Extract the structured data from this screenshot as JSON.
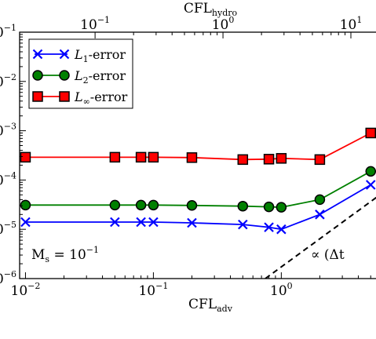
{
  "chart_data": {
    "type": "line",
    "xscale": "log",
    "yscale": "log",
    "xlim": [
      0.009,
      5.5
    ],
    "ylim": [
      1e-06,
      0.1
    ],
    "xlabel_bottom": "CFL",
    "xlabel_bottom_sub": "adv",
    "xlabel_top": "CFL",
    "xlabel_top_sub": "hydro",
    "bottom_ticks": [
      {
        "value": 0.01,
        "base": "10",
        "exp": "−2"
      },
      {
        "value": 0.1,
        "base": "10",
        "exp": "−1"
      },
      {
        "value": 1,
        "base": "10",
        "exp": "0"
      }
    ],
    "top_ticks": [
      {
        "value": 0.035,
        "base": "10",
        "exp": "−1"
      },
      {
        "value": 0.35,
        "base": "10",
        "exp": "0"
      },
      {
        "value": 3.5,
        "base": "10",
        "exp": "1"
      }
    ],
    "y_ticks": [
      {
        "value": 0.1,
        "base": "10",
        "exp": "−1"
      },
      {
        "value": 0.01,
        "base": "10",
        "exp": "−2"
      },
      {
        "value": 0.001,
        "base": "10",
        "exp": "−3"
      },
      {
        "value": 0.0001,
        "base": "10",
        "exp": "−4"
      },
      {
        "value": 1e-05,
        "base": "10",
        "exp": "−5"
      },
      {
        "value": 1e-06,
        "base": "10",
        "exp": "−6"
      }
    ],
    "grid": false,
    "legend_position": "top-left",
    "series": [
      {
        "name": "L1-error",
        "label_main": "L",
        "label_sub": "1",
        "label_tail": "-error",
        "color": "#0000ff",
        "marker": "x",
        "x": [
          0.01,
          0.05,
          0.08,
          0.1,
          0.2,
          0.5,
          0.8,
          1.0,
          2.0,
          5.0
        ],
        "y": [
          1.4e-05,
          1.4e-05,
          1.4e-05,
          1.4e-05,
          1.35e-05,
          1.25e-05,
          1.1e-05,
          1e-05,
          2e-05,
          8e-05
        ]
      },
      {
        "name": "L2-error",
        "label_main": "L",
        "label_sub": "2",
        "label_tail": "-error",
        "color": "#008000",
        "marker": "o",
        "x": [
          0.01,
          0.05,
          0.08,
          0.1,
          0.2,
          0.5,
          0.8,
          1.0,
          2.0,
          5.0
        ],
        "y": [
          3.1e-05,
          3.1e-05,
          3.1e-05,
          3.1e-05,
          3.05e-05,
          2.95e-05,
          2.85e-05,
          2.8e-05,
          4e-05,
          0.00015
        ]
      },
      {
        "name": "L∞-error",
        "label_main": "L",
        "label_sub": "∞",
        "label_tail": "-error",
        "color": "#ff0000",
        "marker": "s",
        "x": [
          0.01,
          0.05,
          0.08,
          0.1,
          0.2,
          0.5,
          0.8,
          1.0,
          2.0,
          5.0
        ],
        "y": [
          0.00029,
          0.00029,
          0.00029,
          0.00029,
          0.000285,
          0.00026,
          0.000265,
          0.000275,
          0.00026,
          0.0009
        ]
      }
    ],
    "reference_line": {
      "label": "∝ (Δt",
      "style": "dashed",
      "color": "#000000",
      "x": [
        0.75,
        8.0
      ],
      "y": [
        1e-06,
        8.9e-05
      ]
    },
    "annotations": [
      {
        "text_main": "M",
        "text_sub": "s",
        "text_eq": " = 10",
        "text_exp": "−1"
      }
    ]
  }
}
